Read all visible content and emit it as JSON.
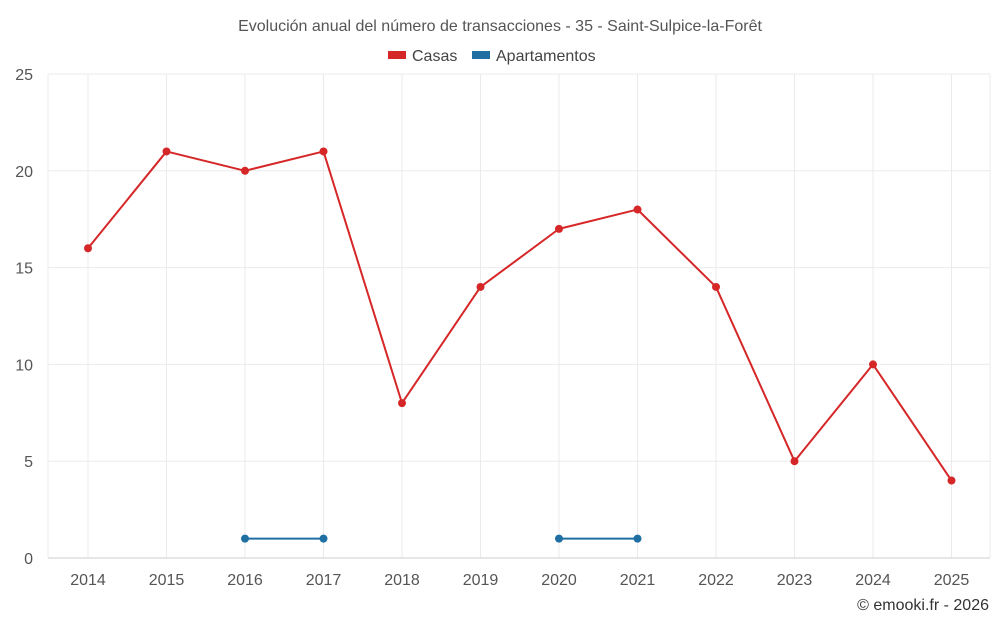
{
  "chart_data": {
    "type": "line",
    "title": "Evolución anual del número de transacciones - 35 - Saint-Sulpice-la-Forêt",
    "categories": [
      "2014",
      "2015",
      "2016",
      "2017",
      "2018",
      "2019",
      "2020",
      "2021",
      "2022",
      "2023",
      "2024",
      "2025"
    ],
    "ylim": [
      0,
      25
    ],
    "yticks": [
      0,
      5,
      10,
      15,
      20,
      25
    ],
    "grid": true,
    "legend_position": "top-center",
    "series": [
      {
        "name": "Casas",
        "color": "#d62728",
        "values": [
          16,
          21,
          20,
          21,
          8,
          14,
          17,
          18,
          14,
          5,
          10,
          4
        ]
      },
      {
        "name": "Apartamentos",
        "color": "#1f6fa3",
        "values": [
          null,
          null,
          1,
          1,
          null,
          null,
          1,
          1,
          null,
          null,
          null,
          null
        ]
      }
    ]
  },
  "credit": "© emooki.fr - 2026"
}
